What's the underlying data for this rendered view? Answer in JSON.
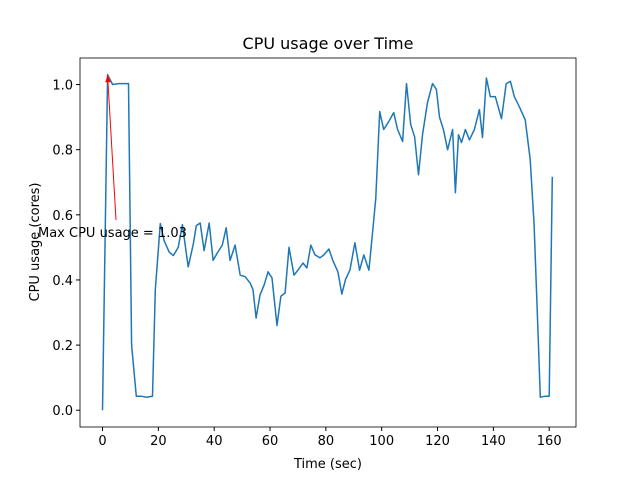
{
  "chart_data": {
    "type": "line",
    "title": "CPU usage over Time",
    "xlabel": "Time (sec)",
    "ylabel": "CPU usage (cores)",
    "annotation": "Max CPU usage = 1.03",
    "annotation_color": "#ff0000",
    "color": "#1f77b4",
    "x": [
      0,
      1.8,
      3.6,
      5.7,
      8.6,
      9.3,
      10.4,
      12.1,
      13.9,
      15.7,
      17.9,
      18.9,
      20.7,
      22.1,
      23.9,
      25.4,
      27.1,
      28.6,
      30.7,
      32.5,
      33.6,
      35,
      36.4,
      38.2,
      39.6,
      41.1,
      42.9,
      44.3,
      45.7,
      47.5,
      49.3,
      51.1,
      52.9,
      53.9,
      55,
      56.4,
      57.9,
      59.3,
      60.7,
      62.5,
      63.9,
      65.4,
      66.8,
      68.6,
      70,
      71.8,
      73.2,
      74.6,
      76.1,
      77.9,
      79.3,
      81.1,
      82.5,
      84.3,
      85.7,
      87.1,
      88.6,
      90.4,
      92.1,
      93.6,
      95.4,
      96.8,
      97.9,
      99.3,
      100.7,
      102.5,
      104.3,
      105.7,
      107.5,
      108.9,
      110.4,
      111.8,
      113.2,
      114.6,
      116.4,
      118.2,
      119.6,
      120.7,
      122.1,
      123.6,
      125.4,
      126.4,
      127.5,
      128.6,
      130,
      131.4,
      133.2,
      135,
      136.1,
      137.5,
      138.9,
      140.7,
      142.9,
      144.6,
      146.1,
      147.5,
      149.3,
      151.4,
      153.2,
      154.6,
      156.1,
      156.8,
      158.6,
      160,
      161.1
    ],
    "values": [
      0,
      1.03,
      1.0,
      1.003,
      1.003,
      1.003,
      0.2,
      0.043,
      0.043,
      0.04,
      0.043,
      0.37,
      0.573,
      0.52,
      0.485,
      0.475,
      0.5,
      0.57,
      0.44,
      0.51,
      0.567,
      0.575,
      0.49,
      0.575,
      0.46,
      0.483,
      0.507,
      0.56,
      0.46,
      0.507,
      0.415,
      0.41,
      0.39,
      0.37,
      0.283,
      0.354,
      0.385,
      0.425,
      0.406,
      0.26,
      0.35,
      0.36,
      0.5,
      0.415,
      0.43,
      0.452,
      0.437,
      0.507,
      0.477,
      0.468,
      0.477,
      0.495,
      0.46,
      0.425,
      0.357,
      0.403,
      0.43,
      0.514,
      0.43,
      0.477,
      0.43,
      0.553,
      0.652,
      0.917,
      0.862,
      0.886,
      0.914,
      0.862,
      0.825,
      1.003,
      0.877,
      0.84,
      0.723,
      0.846,
      0.945,
      1.003,
      0.985,
      0.9,
      0.862,
      0.8,
      0.862,
      0.668,
      0.846,
      0.822,
      0.862,
      0.83,
      0.862,
      0.923,
      0.837,
      1.02,
      0.963,
      0.963,
      0.895,
      1.003,
      1.01,
      0.963,
      0.932,
      0.892,
      0.77,
      0.57,
      0.215,
      0.04,
      0.043,
      0.043,
      0.717
    ],
    "xlim": [
      -8.07,
      169.6
    ],
    "ylim": [
      -0.0515,
      1.0815
    ],
    "xticks": [
      0,
      20,
      40,
      60,
      80,
      100,
      120,
      140,
      160
    ],
    "yticks": [
      {
        "value": 0,
        "label": "0.0"
      },
      0.2,
      0.4,
      0.6,
      0.8,
      {
        "value": 1,
        "label": "1.0"
      }
    ]
  }
}
